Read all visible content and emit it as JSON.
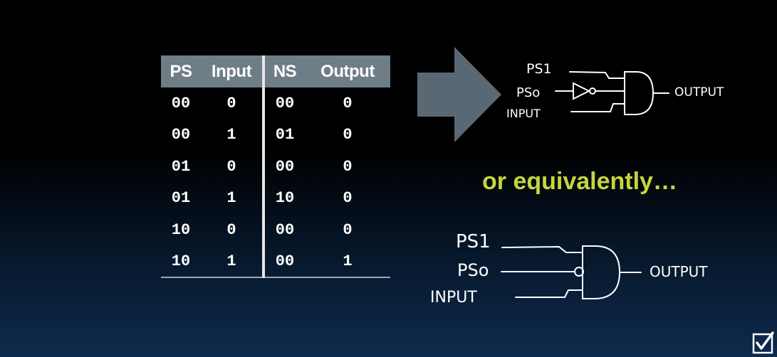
{
  "table": {
    "headers": [
      "PS",
      "Input",
      "NS",
      "Output"
    ],
    "rows": [
      [
        "00",
        "0",
        "00",
        "0"
      ],
      [
        "00",
        "1",
        "01",
        "0"
      ],
      [
        "01",
        "0",
        "00",
        "0"
      ],
      [
        "01",
        "1",
        "10",
        "0"
      ],
      [
        "10",
        "0",
        "00",
        "0"
      ],
      [
        "10",
        "1",
        "00",
        "1"
      ]
    ]
  },
  "circuit_top": {
    "label_ps1": "PS1",
    "label_ps0": "PSo",
    "label_input": "INPUT",
    "label_output": "OUTPUT"
  },
  "middle_text": "or equivalently…",
  "circuit_bottom": {
    "label_ps1": "PS1",
    "label_ps0": "PSo",
    "label_input": "INPUT",
    "label_output": "OUTPUT"
  },
  "icons": [
    "right-arrow-icon",
    "not-gate-icon",
    "and-gate-icon",
    "inversion-bubble-icon",
    "checkbox-icon"
  ],
  "colors": {
    "header_bg": "#6f7d87",
    "arrow": "#5a6873",
    "accent_text": "#c6d63c",
    "background_top": "#000000",
    "background_bottom": "#0d2a4d"
  }
}
